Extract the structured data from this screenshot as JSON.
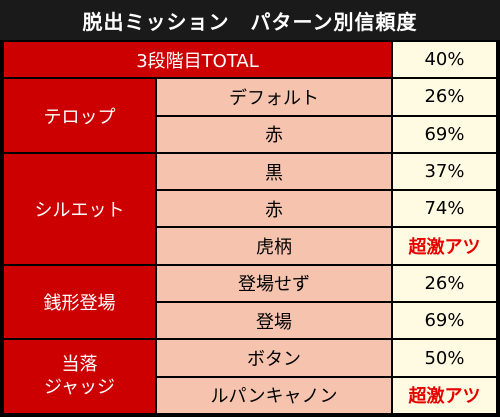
{
  "title": "脱出ミッション　パターン別信頼度",
  "total": {
    "label": "3段階目TOTAL",
    "value": "40%"
  },
  "groups": [
    {
      "category": "テロップ",
      "rows": [
        {
          "pattern": "デフォルト",
          "value": "26%"
        },
        {
          "pattern": "赤",
          "value": "69%"
        }
      ]
    },
    {
      "category": "シルエット",
      "rows": [
        {
          "pattern": "黒",
          "value": "37%"
        },
        {
          "pattern": "赤",
          "value": "74%"
        },
        {
          "pattern": "虎柄",
          "value": "超激アツ"
        }
      ]
    },
    {
      "category": "銭形登場",
      "rows": [
        {
          "pattern": "登場せず",
          "value": "26%"
        },
        {
          "pattern": "登場",
          "value": "69%"
        }
      ]
    },
    {
      "category_lines": [
        "当落",
        "ジャッジ"
      ],
      "rows": [
        {
          "pattern": "ボタン",
          "value": "50%"
        },
        {
          "pattern": "ルパンキャノン",
          "value": "超激アツ"
        }
      ]
    }
  ],
  "colors": {
    "red": "#cc0000",
    "pink": "#f6c4ae",
    "cream": "#fffbe2",
    "hot_text": "#e60000"
  }
}
